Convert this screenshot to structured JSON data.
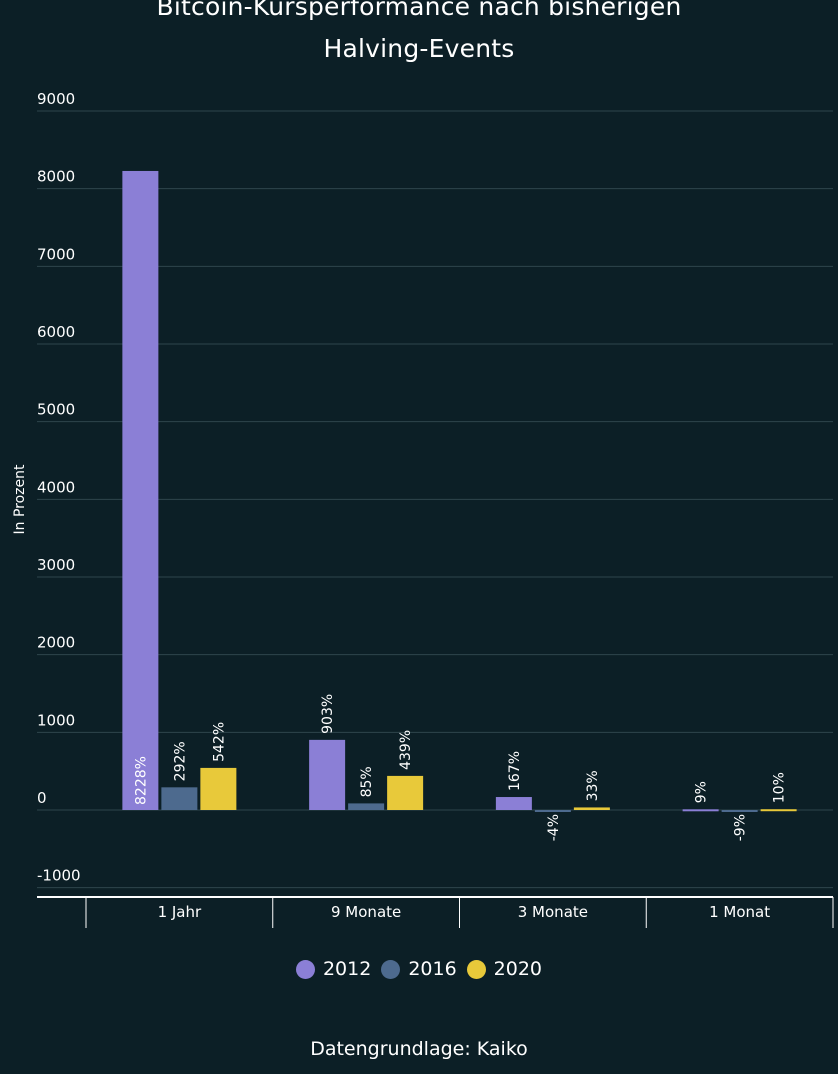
{
  "title_line1": "Bitcoin-Kursperformance nach bisherigen",
  "title_line2": "Halving-Events",
  "source": "Datengrundlage: Kaiko",
  "colors": {
    "background": "#0c1f26",
    "grid": "#2e454c",
    "text": "#ffffff",
    "series_2012": "#8b7fd6",
    "series_2016": "#4d6a8e",
    "series_2020": "#e8c93a"
  },
  "chart_data": {
    "type": "bar",
    "title": "Bitcoin-Kursperformance nach bisherigen Halving-Events",
    "xlabel": "",
    "ylabel": "In Prozent",
    "ylim": [
      -1000,
      9000
    ],
    "yticks": [
      -1000,
      0,
      1000,
      2000,
      3000,
      4000,
      5000,
      6000,
      7000,
      8000,
      9000
    ],
    "categories": [
      "1 Jahr",
      "9 Monate",
      "3 Monate",
      "1 Monat"
    ],
    "grid": true,
    "legend_position": "bottom",
    "series": [
      {
        "name": "2012",
        "color": "#8b7fd6",
        "values": [
          8228,
          903,
          167,
          9
        ],
        "labels": [
          "8228%",
          "903%",
          "167%",
          "9%"
        ]
      },
      {
        "name": "2016",
        "color": "#4d6a8e",
        "values": [
          292,
          85,
          -4,
          -9
        ],
        "labels": [
          "292%",
          "85%",
          "-4%",
          "-9%"
        ]
      },
      {
        "name": "2020",
        "color": "#e8c93a",
        "values": [
          542,
          439,
          33,
          10
        ],
        "labels": [
          "542%",
          "439%",
          "33%",
          "10%"
        ]
      }
    ]
  }
}
